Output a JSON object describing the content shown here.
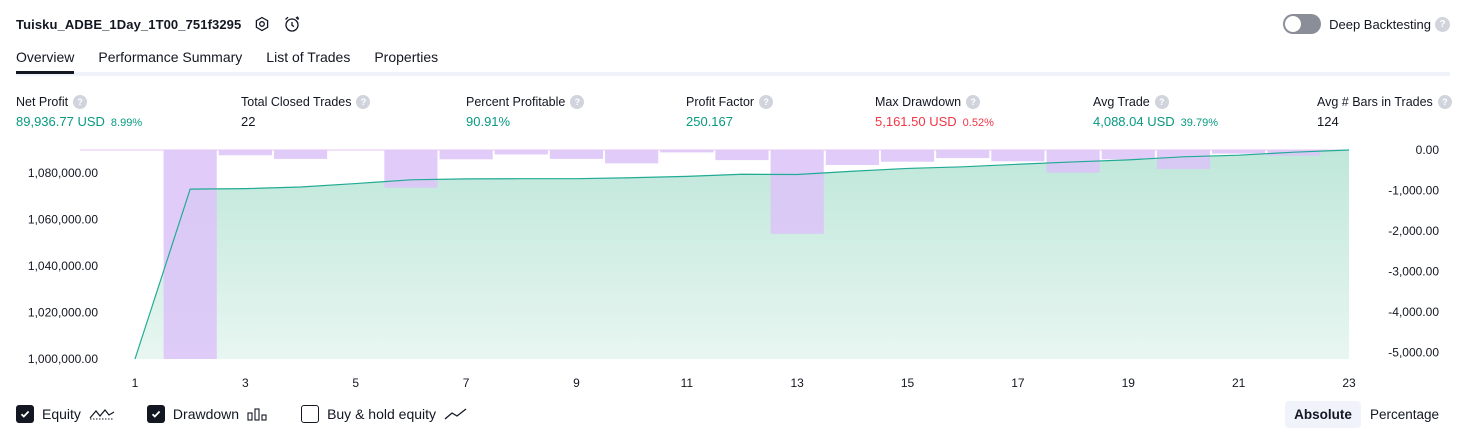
{
  "header": {
    "strategy_title": "Tuisku_ADBE_1Day_1T00_751f3295",
    "deep_backtesting_label": "Deep Backtesting",
    "deep_backtesting_enabled": false
  },
  "tabs": [
    {
      "label": "Overview",
      "active": true
    },
    {
      "label": "Performance Summary",
      "active": false
    },
    {
      "label": "List of Trades",
      "active": false
    },
    {
      "label": "Properties",
      "active": false
    }
  ],
  "metrics": {
    "net_profit": {
      "label": "Net Profit",
      "value": "89,936.77 USD",
      "sub": "8.99%"
    },
    "total_closed_trades": {
      "label": "Total Closed Trades",
      "value": "22"
    },
    "percent_profitable": {
      "label": "Percent Profitable",
      "value": "90.91%"
    },
    "profit_factor": {
      "label": "Profit Factor",
      "value": "250.167"
    },
    "max_drawdown": {
      "label": "Max Drawdown",
      "value": "5,161.50 USD",
      "sub": "0.52%"
    },
    "avg_trade": {
      "label": "Avg Trade",
      "value": "4,088.04 USD",
      "sub": "39.79%"
    },
    "avg_bars": {
      "label": "Avg # Bars in Trades",
      "value": "124"
    }
  },
  "legend": {
    "equity": {
      "label": "Equity",
      "checked": true
    },
    "drawdown": {
      "label": "Drawdown",
      "checked": true
    },
    "buy_hold": {
      "label": "Buy & hold equity",
      "checked": false
    }
  },
  "mode": {
    "absolute": "Absolute",
    "percentage": "Percentage",
    "selected": "Absolute"
  },
  "colors": {
    "equity_line": "#22ab94",
    "equity_fill": "#c5eadf",
    "drawdown_bar": "#dcc3f8",
    "overlap_bar": "#aab8e0",
    "profit": "#089981",
    "loss": "#f23645"
  },
  "chart_data": {
    "type": "area",
    "x_ticks": [
      "1",
      "3",
      "5",
      "7",
      "9",
      "11",
      "13",
      "15",
      "17",
      "19",
      "21",
      "23"
    ],
    "left_ticks": [
      "1,080,000.00",
      "1,060,000.00",
      "1,040,000.00",
      "1,020,000.00",
      "1,000,000.00"
    ],
    "right_ticks": [
      "0.00",
      "-1,000.00",
      "-2,000.00",
      "-3,000.00",
      "-4,000.00",
      "-5,000.00"
    ],
    "left_ylim": [
      1000000,
      1089937
    ],
    "right_ylim": [
      -5161.5,
      0
    ],
    "series": [
      {
        "name": "Equity",
        "x": [
          1,
          2,
          3,
          4,
          5,
          6,
          7,
          8,
          9,
          10,
          11,
          12,
          13,
          14,
          15,
          16,
          17,
          18,
          19,
          20,
          21,
          22,
          23
        ],
        "values": [
          1000000,
          1073100,
          1073300,
          1074000,
          1075500,
          1077100,
          1077500,
          1077600,
          1077600,
          1078000,
          1078600,
          1079500,
          1079400,
          1080800,
          1082000,
          1082700,
          1083800,
          1084800,
          1085700,
          1087000,
          1087700,
          1089000,
          1089937
        ]
      },
      {
        "name": "Drawdown",
        "x": [
          1,
          2,
          3,
          4,
          5,
          6,
          7,
          8,
          9,
          10,
          11,
          12,
          13,
          14,
          15,
          16,
          17,
          18,
          19,
          20,
          21,
          22,
          23
        ],
        "values": [
          0,
          -5161.5,
          -130,
          -220,
          0,
          -930,
          -230,
          -110,
          -220,
          -330,
          -60,
          -250,
          -2070,
          -370,
          -290,
          -200,
          -280,
          -560,
          -230,
          -470,
          -90,
          -140,
          0
        ]
      }
    ]
  }
}
